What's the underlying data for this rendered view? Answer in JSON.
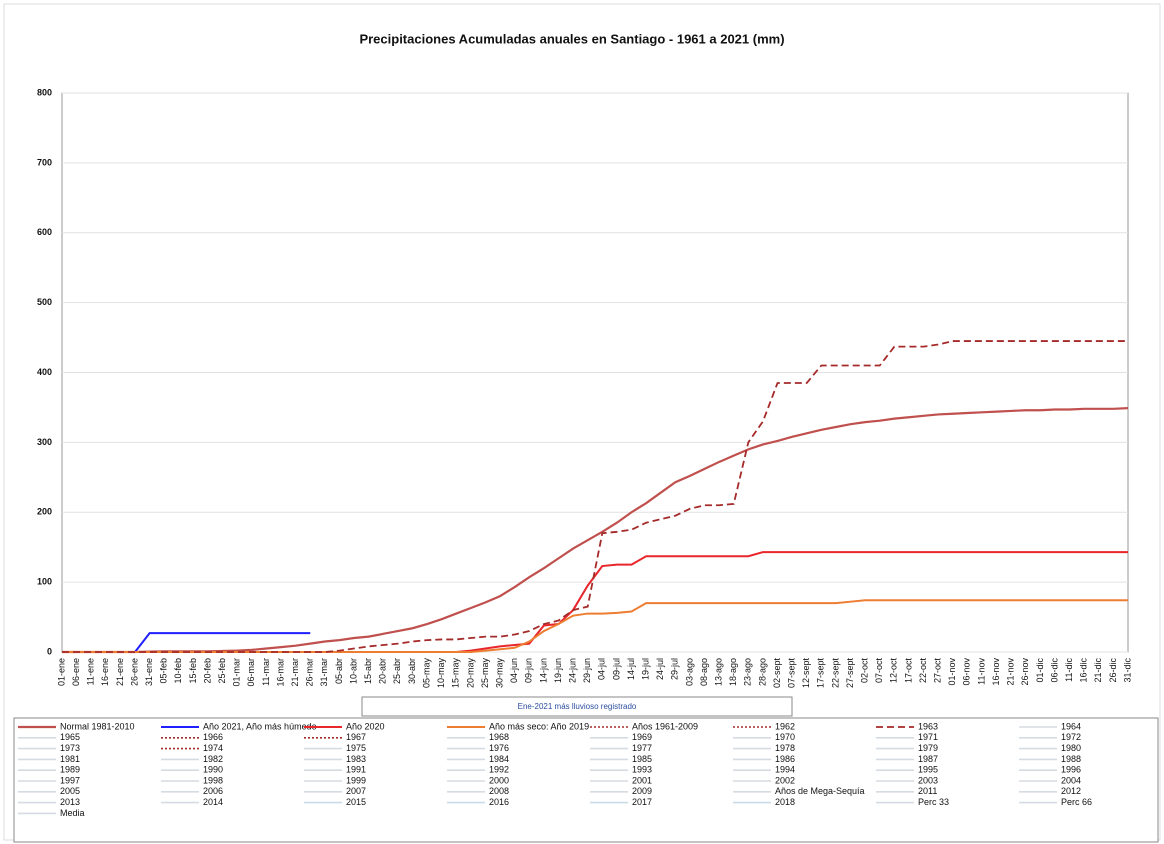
{
  "chart_data": {
    "type": "line",
    "title": "Precipitaciones Acumuladas anuales en Santiago - 1961 a 2021 (mm)",
    "annotation": "Ene-2021 más lluvioso registrado",
    "categories": [
      "01-ene",
      "06-ene",
      "11-ene",
      "16-ene",
      "21-ene",
      "26-ene",
      "31-ene",
      "05-feb",
      "10-feb",
      "15-feb",
      "20-feb",
      "25-feb",
      "01-mar",
      "06-mar",
      "11-mar",
      "16-mar",
      "21-mar",
      "26-mar",
      "31-mar",
      "05-abr",
      "10-abr",
      "15-abr",
      "20-abr",
      "25-abr",
      "30-abr",
      "05-may",
      "10-may",
      "15-may",
      "20-may",
      "25-may",
      "30-may",
      "04-jun",
      "09-jun",
      "14-jun",
      "19-jun",
      "24-jun",
      "29-jun",
      "04-jul",
      "09-jul",
      "14-jul",
      "19-jul",
      "24-jul",
      "29-jul",
      "03-ago",
      "08-ago",
      "13-ago",
      "18-ago",
      "23-ago",
      "28-ago",
      "02-sept",
      "07-sept",
      "12-sept",
      "17-sept",
      "22-sept",
      "27-sept",
      "02-oct",
      "07-oct",
      "12-oct",
      "17-oct",
      "22-oct",
      "27-oct",
      "01-nov",
      "06-nov",
      "11-nov",
      "16-nov",
      "21-nov",
      "26-nov",
      "01-dic",
      "06-dic",
      "11-dic",
      "16-dic",
      "21-dic",
      "26-dic",
      "31-dic"
    ],
    "ylim": [
      0,
      800
    ],
    "yticks": [
      0,
      100,
      200,
      300,
      400,
      500,
      600,
      700,
      800
    ],
    "grid": true,
    "series": [
      {
        "name": "Normal 1981-2010",
        "color": "#c0504d",
        "width": 2.2,
        "dash": "none",
        "values": [
          0,
          0,
          0,
          0,
          0,
          0,
          0.5,
          1,
          1,
          1,
          1,
          1.5,
          2,
          3,
          5,
          7,
          9,
          12,
          15,
          17,
          20,
          22,
          26,
          30,
          34,
          40,
          47,
          55,
          63,
          71,
          80,
          93,
          107,
          120,
          134,
          148,
          160,
          172,
          185,
          200,
          213,
          228,
          243,
          252,
          262,
          272,
          281,
          290,
          297,
          302,
          308,
          313,
          318,
          322,
          326,
          329,
          331,
          334,
          336,
          338,
          340,
          341,
          342,
          343,
          344,
          345,
          346,
          346,
          347,
          347,
          348,
          348,
          348,
          349
        ]
      },
      {
        "name": "Año 2021, Año más húmedo",
        "color": "#1f1fff",
        "width": 2,
        "dash": "none",
        "values": [
          0,
          0,
          0,
          0,
          0,
          0,
          27,
          27,
          27,
          27,
          27,
          27,
          27,
          27,
          27,
          27,
          27,
          27,
          null,
          null,
          null,
          null,
          null,
          null,
          null,
          null,
          null,
          null,
          null,
          null,
          null,
          null,
          null,
          null,
          null,
          null,
          null,
          null,
          null,
          null,
          null,
          null,
          null,
          null,
          null,
          null,
          null,
          null,
          null,
          null,
          null,
          null,
          null,
          null,
          null,
          null,
          null,
          null,
          null,
          null,
          null,
          null,
          null,
          null,
          null,
          null,
          null,
          null,
          null,
          null,
          null,
          null,
          null,
          null
        ]
      },
      {
        "name": "Año 2020",
        "color": "#e8262b",
        "width": 2,
        "dash": "none",
        "values": [
          0,
          0,
          0,
          0,
          0,
          0,
          0,
          0,
          0,
          0,
          0,
          0,
          0,
          0,
          0,
          0,
          0,
          0,
          0,
          0,
          0,
          0,
          0,
          0,
          0,
          0,
          0,
          0,
          2,
          5,
          8,
          10,
          12,
          38,
          40,
          60,
          95,
          123,
          125,
          125,
          137,
          137,
          137,
          137,
          137,
          137,
          137,
          137,
          143,
          143,
          143,
          143,
          143,
          143,
          143,
          143,
          143,
          143,
          143,
          143,
          143,
          143,
          143,
          143,
          143,
          143,
          143,
          143,
          143,
          143,
          143,
          143,
          143,
          143
        ]
      },
      {
        "name": "Año más seco: Año 2019",
        "color": "#ed7d31",
        "width": 2,
        "dash": "none",
        "values": [
          0,
          0,
          0,
          0,
          0,
          0,
          0,
          0,
          0,
          0,
          0,
          0,
          0,
          0,
          0,
          0,
          0,
          0,
          0,
          0,
          0,
          0,
          0,
          0,
          0,
          0,
          0,
          0,
          0,
          2,
          4,
          6,
          15,
          30,
          40,
          52,
          55,
          55,
          56,
          58,
          70,
          70,
          70,
          70,
          70,
          70,
          70,
          70,
          70,
          70,
          70,
          70,
          70,
          70,
          72,
          74,
          74,
          74,
          74,
          74,
          74,
          74,
          74,
          74,
          74,
          74,
          74,
          74,
          74,
          74,
          74,
          74,
          74,
          74
        ]
      },
      {
        "name": "1963",
        "color": "#a52a2a",
        "width": 1.8,
        "dash": "7 4",
        "values": [
          0,
          0,
          0,
          0,
          0,
          0,
          0,
          0,
          0,
          0,
          0,
          0,
          0,
          0,
          0,
          0,
          0,
          0,
          0,
          2,
          5,
          8,
          10,
          12,
          15,
          17,
          18,
          18,
          20,
          22,
          22,
          25,
          30,
          40,
          45,
          60,
          65,
          170,
          172,
          175,
          185,
          190,
          195,
          205,
          210,
          210,
          212,
          300,
          330,
          385,
          385,
          385,
          410,
          410,
          410,
          410,
          410,
          437,
          437,
          437,
          440,
          445,
          445,
          445,
          445,
          445,
          445,
          445,
          445,
          445,
          445,
          445,
          445,
          445
        ]
      }
    ],
    "legend_entries": [
      {
        "name": "Años 1961-2009",
        "color": "#a52a2a",
        "dash": "2 2"
      },
      {
        "name": "1962",
        "color": "#a52a2a",
        "dash": "2 2"
      },
      {
        "name": "1964",
        "color": "#d5dbe2",
        "dash": "none"
      },
      {
        "name": "1965",
        "color": "#d5dbe2",
        "dash": "none"
      },
      {
        "name": "1966",
        "color": "#a52a2a",
        "dash": "2 2"
      },
      {
        "name": "1967",
        "color": "#a52a2a",
        "dash": "2 2"
      },
      {
        "name": "1968",
        "color": "#d5dbe2",
        "dash": "none"
      },
      {
        "name": "1969",
        "color": "#d5dbe2",
        "dash": "none"
      },
      {
        "name": "1970",
        "color": "#d5dbe2",
        "dash": "none"
      },
      {
        "name": "1971",
        "color": "#d5dbe2",
        "dash": "none"
      },
      {
        "name": "1972",
        "color": "#d5dbe2",
        "dash": "none"
      },
      {
        "name": "1973",
        "color": "#d5dbe2",
        "dash": "none"
      },
      {
        "name": "1974",
        "color": "#a52a2a",
        "dash": "2 2"
      },
      {
        "name": "1975",
        "color": "#d5dbe2",
        "dash": "none"
      },
      {
        "name": "1976",
        "color": "#d5dbe2",
        "dash": "none"
      },
      {
        "name": "1977",
        "color": "#d5dbe2",
        "dash": "none"
      },
      {
        "name": "1978",
        "color": "#d5dbe2",
        "dash": "none"
      },
      {
        "name": "1979",
        "color": "#d5dbe2",
        "dash": "none"
      },
      {
        "name": "1980",
        "color": "#d5dbe2",
        "dash": "none"
      },
      {
        "name": "1981",
        "color": "#d5dbe2",
        "dash": "none"
      },
      {
        "name": "1982",
        "color": "#d5dbe2",
        "dash": "none"
      },
      {
        "name": "1983",
        "color": "#d5dbe2",
        "dash": "none"
      },
      {
        "name": "1984",
        "color": "#d5dbe2",
        "dash": "none"
      },
      {
        "name": "1985",
        "color": "#d5dbe2",
        "dash": "none"
      },
      {
        "name": "1986",
        "color": "#d5dbe2",
        "dash": "none"
      },
      {
        "name": "1987",
        "color": "#d5dbe2",
        "dash": "none"
      },
      {
        "name": "1988",
        "color": "#d5dbe2",
        "dash": "none"
      },
      {
        "name": "1989",
        "color": "#d5dbe2",
        "dash": "none"
      },
      {
        "name": "1990",
        "color": "#d5dbe2",
        "dash": "none"
      },
      {
        "name": "1991",
        "color": "#d5dbe2",
        "dash": "none"
      },
      {
        "name": "1992",
        "color": "#d5dbe2",
        "dash": "none"
      },
      {
        "name": "1993",
        "color": "#d5dbe2",
        "dash": "none"
      },
      {
        "name": "1994",
        "color": "#d5dbe2",
        "dash": "none"
      },
      {
        "name": "1995",
        "color": "#d5dbe2",
        "dash": "none"
      },
      {
        "name": "1996",
        "color": "#d5dbe2",
        "dash": "none"
      },
      {
        "name": "1997",
        "color": "#d5dbe2",
        "dash": "none"
      },
      {
        "name": "1998",
        "color": "#d5dbe2",
        "dash": "none"
      },
      {
        "name": "1999",
        "color": "#d5dbe2",
        "dash": "none"
      },
      {
        "name": "2000",
        "color": "#d5dbe2",
        "dash": "none"
      },
      {
        "name": "2001",
        "color": "#d5dbe2",
        "dash": "none"
      },
      {
        "name": "2002",
        "color": "#d5dbe2",
        "dash": "none"
      },
      {
        "name": "2003",
        "color": "#d5dbe2",
        "dash": "none"
      },
      {
        "name": "2004",
        "color": "#d5dbe2",
        "dash": "none"
      },
      {
        "name": "2005",
        "color": "#d5dbe2",
        "dash": "none"
      },
      {
        "name": "2006",
        "color": "#d5dbe2",
        "dash": "none"
      },
      {
        "name": "2007",
        "color": "#d5dbe2",
        "dash": "none"
      },
      {
        "name": "2008",
        "color": "#d5dbe2",
        "dash": "none"
      },
      {
        "name": "2009",
        "color": "#d5dbe2",
        "dash": "none"
      },
      {
        "name": "Años de Mega-Sequía",
        "color": "#d5dbe2",
        "dash": "none"
      },
      {
        "name": "2011",
        "color": "#d5dbe2",
        "dash": "none"
      },
      {
        "name": "2012",
        "color": "#d5dbe2",
        "dash": "none"
      },
      {
        "name": "2013",
        "color": "#d5dbe2",
        "dash": "none"
      },
      {
        "name": "2014",
        "color": "#d5dbe2",
        "dash": "none"
      },
      {
        "name": "2015",
        "color": "#c9dbe8",
        "dash": "none"
      },
      {
        "name": "2016",
        "color": "#c9dbe8",
        "dash": "none"
      },
      {
        "name": "2017",
        "color": "#c9dbe8",
        "dash": "none"
      },
      {
        "name": "2018",
        "color": "#c9dbe8",
        "dash": "none"
      },
      {
        "name": "Perc 33",
        "color": "#d5dbe2",
        "dash": "none"
      },
      {
        "name": "Perc 66",
        "color": "#d5dbe2",
        "dash": "none"
      },
      {
        "name": "Media",
        "color": "#d5dbe2",
        "dash": "none"
      }
    ]
  }
}
